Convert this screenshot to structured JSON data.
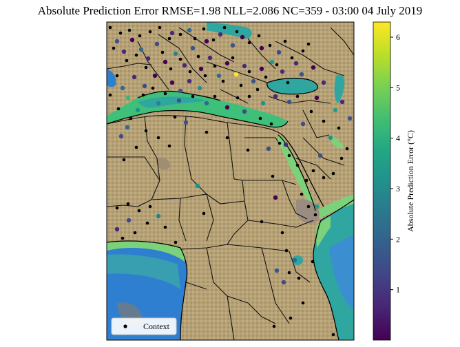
{
  "title": "Absolute Prediction Error RMSE=1.98 NLL=2.086 NC=359 - 03:00 04 July 2019",
  "legend": {
    "label": "Context"
  },
  "colorbar": {
    "label": "Absolute Prediction Error (°C)",
    "colormap": "viridis",
    "min": 0,
    "max": 6.3,
    "ticks": [
      "1",
      "2",
      "3",
      "4",
      "5",
      "6"
    ]
  },
  "colors": {
    "land": "#b39e72",
    "land_dark": "#8a7a66",
    "coast_green": "#7cd27a",
    "sea_teal": "#2fa6a0",
    "sea_blue": "#2f7fd0",
    "context": "#000000",
    "border": "#111111"
  },
  "chart_data": {
    "type": "scatter",
    "title": "Absolute Prediction Error RMSE=1.98 NLL=2.086 NC=359 - 03:00 04 July 2019",
    "metrics": {
      "RMSE": 1.98,
      "NLL": 2.086,
      "NC": 359
    },
    "timestamp": "03:00 04 July 2019",
    "series": [
      {
        "name": "Context",
        "marker": "black dot"
      }
    ],
    "colorbar_label": "Absolute Prediction Error (°C)",
    "color_range": [
      0,
      6.3
    ],
    "legend_placement": "bottom-left"
  }
}
